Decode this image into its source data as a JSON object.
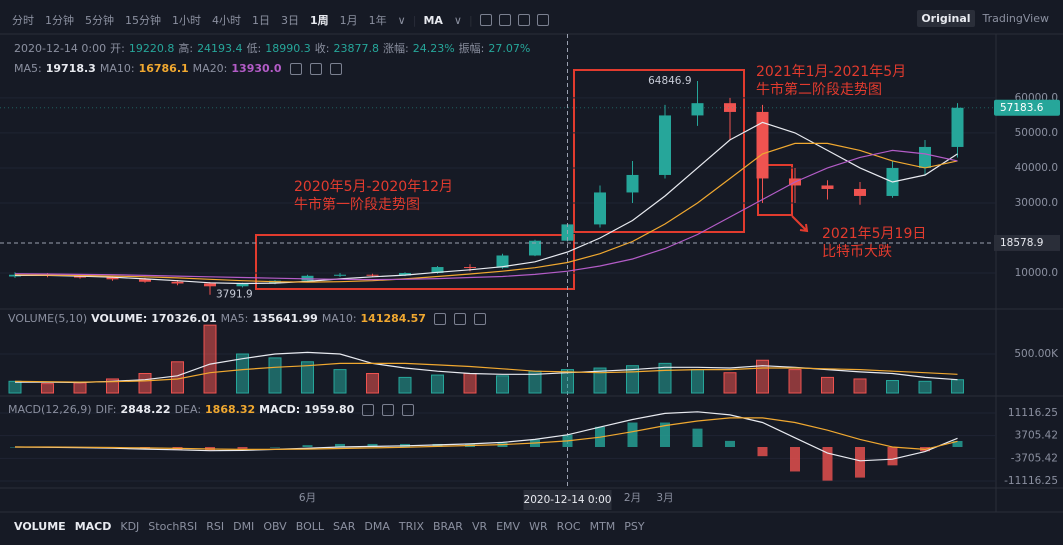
{
  "toolbar": {
    "intervals": [
      "分时",
      "1分钟",
      "5分钟",
      "15分钟",
      "1小时",
      "4小时",
      "1日",
      "3日",
      "1周",
      "1月",
      "1年"
    ],
    "indicator": "MA",
    "modes": [
      "Original",
      "TradingView"
    ]
  },
  "header": {
    "date": "2020-12-14 0:00",
    "labels": [
      "开:",
      "高:",
      "低:",
      "收:",
      "涨幅:",
      "振幅:"
    ],
    "change": "24.23%",
    "amplitude": "27.07%"
  },
  "annotations": [
    {
      "lines": [
        "2020年5月-2020年12月",
        "牛市第一阶段走势图"
      ]
    },
    {
      "lines": [
        "2021年1月-2021年5月",
        "牛市第二阶段走势图"
      ]
    },
    {
      "lines": [
        "2021年5月19日",
        "比特币大跌"
      ]
    }
  ],
  "chart_data": [
    {
      "type": "candlestick",
      "categories": [
        null,
        null,
        null,
        null,
        null,
        null,
        null,
        null,
        null,
        "6月",
        null,
        null,
        null,
        null,
        null,
        null,
        null,
        null,
        null,
        "2月",
        "3月",
        null,
        null,
        null,
        null,
        null,
        null,
        null,
        null,
        null
      ],
      "open": [
        9000,
        9500,
        9200,
        8700,
        8200,
        7500,
        7000,
        6200,
        7000,
        7800,
        9200,
        9500,
        9300,
        10000,
        11700,
        11500,
        15000,
        19220.8,
        23877.8,
        33000,
        38000,
        55000,
        58500,
        56000,
        37000,
        35000,
        34000,
        32000,
        40000,
        46000
      ],
      "high": [
        10200,
        10000,
        9600,
        9000,
        8600,
        8000,
        7400,
        7200,
        8000,
        9500,
        10000,
        9800,
        10200,
        12000,
        12500,
        15500,
        19500,
        24193.4,
        35000,
        42000,
        58000,
        64846.9,
        60000,
        58000,
        40000,
        36500,
        36000,
        42000,
        48000,
        58500
      ],
      "low": [
        8600,
        8800,
        8400,
        7800,
        7200,
        6500,
        3791.9,
        5900,
        6800,
        7600,
        8900,
        9000,
        9100,
        9800,
        10500,
        11200,
        14800,
        18990.3,
        23000,
        30000,
        37000,
        52000,
        48000,
        30000,
        30000,
        31000,
        29500,
        31500,
        38000,
        43000
      ],
      "close": [
        9500,
        9200,
        8700,
        8200,
        7500,
        7000,
        6200,
        7000,
        7800,
        9200,
        9500,
        9300,
        10000,
        11700,
        11500,
        15000,
        19220.8,
        23877.8,
        33000,
        38000,
        55000,
        58500,
        56000,
        37000,
        35000,
        34000,
        32000,
        40000,
        46000,
        57183.6
      ],
      "up_color": "#26a69a",
      "down_color": "#ef5350",
      "series": [
        {
          "name": "MA5:",
          "readout": "19718.3",
          "color": "#e8eaf0",
          "values": [
            9300,
            9300,
            9100,
            8800,
            8300,
            7800,
            7200,
            7000,
            7100,
            7600,
            8300,
            8900,
            9400,
            10200,
            10900,
            11800,
            13200,
            16000,
            20000,
            25000,
            32000,
            40000,
            48000,
            53000,
            50000,
            45000,
            40000,
            36000,
            38000,
            44000
          ]
        },
        {
          "name": "MA10:",
          "readout": "16786.1",
          "color": "#f0a830",
          "values": [
            9500,
            9400,
            9300,
            9100,
            8900,
            8600,
            8200,
            7800,
            7500,
            7400,
            7500,
            7800,
            8300,
            9000,
            9700,
            10500,
            11500,
            13000,
            15500,
            19000,
            24000,
            30000,
            37000,
            44000,
            47000,
            47000,
            45000,
            42000,
            40000,
            42000
          ]
        },
        {
          "name": "MA20:",
          "readout": "13930.0",
          "color": "#b35cc7",
          "values": [
            9800,
            9700,
            9600,
            9500,
            9300,
            9100,
            8900,
            8700,
            8500,
            8300,
            8200,
            8100,
            8200,
            8400,
            8700,
            9000,
            9600,
            10500,
            12000,
            14000,
            17000,
            21000,
            26000,
            31000,
            36000,
            40000,
            43000,
            45000,
            44000,
            42000
          ]
        }
      ],
      "ylim": [
        0,
        79400
      ],
      "yticks": [
        {
          "value": 10000,
          "label": "10000.0"
        },
        {
          "value": 30000,
          "label": "30000.0"
        },
        {
          "value": 40000,
          "label": "40000.0"
        },
        {
          "value": 50000,
          "label": "50000.0"
        },
        {
          "value": 60000,
          "label": "60000.0"
        }
      ],
      "grid": true,
      "last_price": 57183.6,
      "crosshair": {
        "x_label": "2020-12-14 0:00",
        "y": 18578.9
      }
    },
    {
      "type": "bar",
      "title": "VOLUME(5,10)",
      "name": "VOLUME:",
      "readout": "170326.01",
      "values": [
        150000,
        120000,
        130000,
        180000,
        250000,
        400000,
        870000,
        500000,
        450000,
        400000,
        300000,
        250000,
        200000,
        230000,
        250000,
        220000,
        280000,
        300000,
        320000,
        350000,
        380000,
        300000,
        260000,
        420000,
        300000,
        200000,
        180000,
        160000,
        150000,
        170000
      ],
      "series": [
        {
          "name": "MA5:",
          "readout": "135641.99",
          "color": "#e8eaf0",
          "values": [
            140000,
            140000,
            135000,
            150000,
            170000,
            220000,
            370000,
            440000,
            500000,
            520000,
            500000,
            380000,
            320000,
            280000,
            250000,
            240000,
            240000,
            260000,
            280000,
            300000,
            330000,
            330000,
            320000,
            350000,
            330000,
            300000,
            270000,
            250000,
            200000,
            170000
          ]
        },
        {
          "name": "MA10:",
          "readout": "141284.57",
          "color": "#f0a830",
          "values": [
            150000,
            145000,
            140000,
            145000,
            155000,
            180000,
            260000,
            300000,
            330000,
            350000,
            380000,
            380000,
            380000,
            360000,
            340000,
            310000,
            280000,
            270000,
            260000,
            270000,
            290000,
            300000,
            300000,
            320000,
            320000,
            310000,
            300000,
            280000,
            260000,
            240000
          ]
        }
      ],
      "ylim": [
        0,
        1064100
      ],
      "yticks": [
        {
          "value": 500000,
          "label": "500.00K"
        }
      ]
    },
    {
      "type": "macd",
      "title": "MACD(12,26,9)",
      "values": [
        0,
        -200,
        -300,
        -500,
        -800,
        -900,
        -1100,
        -600,
        0,
        600,
        1000,
        1000,
        1000,
        1000,
        1000,
        1400,
        2400,
        4000,
        6600,
        8000,
        8000,
        6000,
        2000,
        -3000,
        -8000,
        -11000,
        -10000,
        -6000,
        -1400,
        1959.8
      ],
      "name": "MACD:",
      "readout": "1959.80",
      "series": [
        {
          "name": "DIF:",
          "readout": "2848.22",
          "color": "#e8eaf0",
          "values": [
            0,
            -100,
            -200,
            -400,
            -700,
            -900,
            -1200,
            -1100,
            -800,
            -400,
            0,
            200,
            400,
            700,
            1000,
            1500,
            2500,
            4000,
            6500,
            9000,
            11000,
            11500,
            10500,
            8000,
            3000,
            -2000,
            -4500,
            -4000,
            -1500,
            2848.22
          ]
        },
        {
          "name": "DEA:",
          "readout": "1868.32",
          "color": "#f0a830",
          "values": [
            0,
            0,
            -50,
            -150,
            -300,
            -450,
            -650,
            -800,
            -800,
            -700,
            -500,
            -300,
            -100,
            200,
            500,
            800,
            1300,
            2000,
            3200,
            5000,
            7000,
            8500,
            9500,
            9500,
            8000,
            5500,
            2500,
            0,
            -800,
            1868.32
          ]
        }
      ],
      "ylim": [
        -13077,
        16019
      ],
      "yticks": [
        11116.25,
        3705.42,
        -3705.42,
        -11116.25
      ]
    }
  ],
  "tabs": [
    "VOLUME",
    "MACD",
    "KDJ",
    "StochRSI",
    "RSI",
    "DMI",
    "OBV",
    "BOLL",
    "SAR",
    "DMA",
    "TRIX",
    "BRAR",
    "VR",
    "EMV",
    "WR",
    "ROC",
    "MTM",
    "PSY"
  ]
}
